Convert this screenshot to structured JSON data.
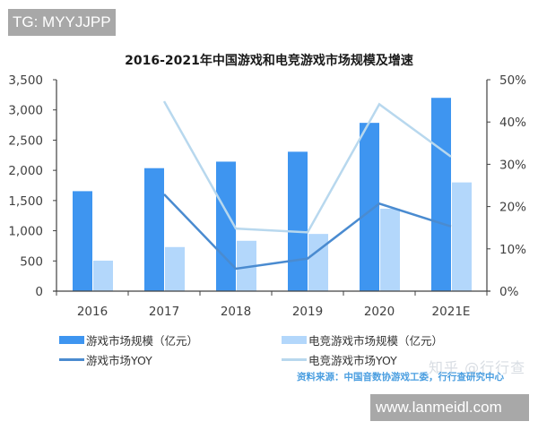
{
  "watermarks": {
    "top_left": "TG: MYYJJPP",
    "bottom_right": "www.lanmeidl.com",
    "zhihu": "知乎 @行行查"
  },
  "source_note": "资料来源：中国音数协游戏工委，行行查研究中心",
  "colors": {
    "game_bar": "#3e95f0",
    "esports_bar": "#b3d7fb",
    "game_yoy_line": "#4a8bd0",
    "esports_yoy_line": "#b8d8ee",
    "axis": "#404040"
  },
  "chart_data": {
    "type": "bar",
    "title": "2016-2021年中国游戏和电竞游戏市场规模及增速",
    "categories": [
      "2016",
      "2017",
      "2018",
      "2019",
      "2020",
      "2021E"
    ],
    "series": [
      {
        "name": "游戏市场规模（亿元）",
        "type": "bar",
        "axis": "left",
        "values": [
          1655,
          2036,
          2144,
          2308,
          2786,
          3200
        ]
      },
      {
        "name": "电竞游戏市场规模（亿元）",
        "type": "bar",
        "axis": "left",
        "values": [
          505,
          730,
          834,
          947,
          1365,
          1800
        ]
      },
      {
        "name": "游戏市场YOY",
        "type": "line",
        "axis": "right",
        "values": [
          null,
          22.9,
          5.3,
          7.7,
          20.7,
          15.3
        ]
      },
      {
        "name": "电竞游戏市场YOY",
        "type": "line",
        "axis": "right",
        "values": [
          null,
          44.9,
          14.8,
          13.9,
          44.2,
          31.8
        ]
      }
    ],
    "xlabel": "",
    "ylabel": "",
    "ylim": [
      0,
      3500
    ],
    "y_ticks": [
      "0",
      "500",
      "1,000",
      "1,500",
      "2,000",
      "2,500",
      "3,000",
      "3,500"
    ],
    "y2lim": [
      0,
      50
    ],
    "y2_ticks": [
      "0%",
      "10%",
      "20%",
      "30%",
      "40%",
      "50%"
    ],
    "grid": false,
    "legend_position": "bottom"
  },
  "legend": [
    {
      "label": "游戏市场规模（亿元）",
      "kind": "bar"
    },
    {
      "label": "电竞游戏市场规模（亿元）",
      "kind": "bar"
    },
    {
      "label": "游戏市场YOY",
      "kind": "line"
    },
    {
      "label": "电竞游戏市场YOY",
      "kind": "line"
    }
  ]
}
